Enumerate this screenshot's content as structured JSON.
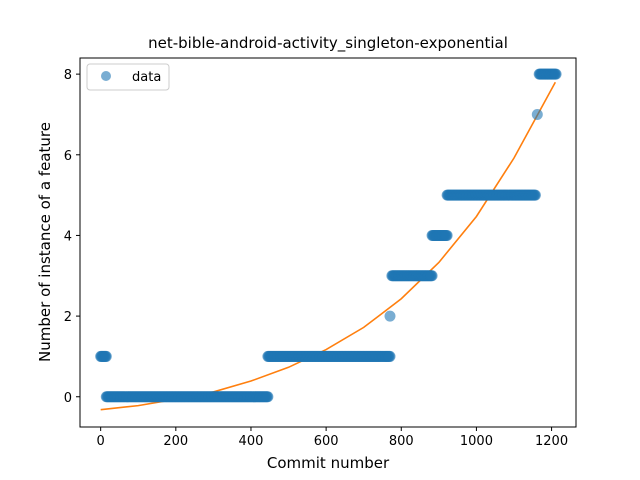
{
  "chart_data": {
    "type": "scatter",
    "title": "net-bible-android-activity_singleton-exponential",
    "xlabel": "Commit number",
    "ylabel": "Number of instance of a feature",
    "xlim": [
      -55,
      1265
    ],
    "ylim": [
      -0.75,
      8.4
    ],
    "xticks": [
      0,
      200,
      400,
      600,
      800,
      1000,
      1200
    ],
    "yticks": [
      0,
      2,
      4,
      6,
      8
    ],
    "grid": false,
    "legend": {
      "position": "top-left",
      "entries": [
        "data"
      ]
    },
    "colors": {
      "data": "#1f77b4",
      "fit": "#ff7f0e"
    },
    "series": [
      {
        "name": "data",
        "kind": "points",
        "segments": [
          {
            "x_start": 0,
            "x_end": 15,
            "y": 1
          },
          {
            "x_start": 15,
            "x_end": 445,
            "y": 0
          },
          {
            "x_start": 445,
            "x_end": 770,
            "y": 1
          },
          {
            "x_start": 770,
            "x_end": 770,
            "y": 2
          },
          {
            "x_start": 775,
            "x_end": 882,
            "y": 3
          },
          {
            "x_start": 882,
            "x_end": 922,
            "y": 4
          },
          {
            "x_start": 922,
            "x_end": 1157,
            "y": 5
          },
          {
            "x_start": 1162,
            "x_end": 1162,
            "y": 7
          },
          {
            "x_start": 1167,
            "x_end": 1212,
            "y": 8
          }
        ]
      },
      {
        "kind": "fit",
        "x": [
          0,
          100,
          200,
          300,
          400,
          500,
          600,
          700,
          800,
          900,
          1000,
          1100,
          1210
        ],
        "y": [
          -0.32,
          -0.22,
          -0.06,
          0.12,
          0.39,
          0.73,
          1.17,
          1.72,
          2.43,
          3.33,
          4.47,
          5.92,
          7.8
        ]
      }
    ]
  }
}
